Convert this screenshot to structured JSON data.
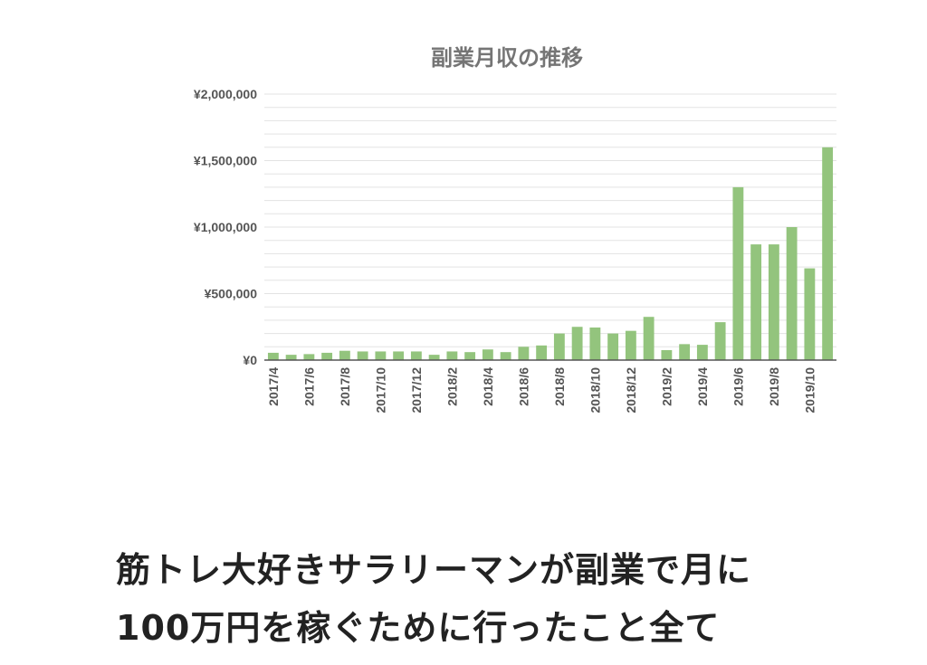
{
  "colors": {
    "bar": "#93c47d",
    "grid": "#e3e3e3",
    "axis": "#555555",
    "title": "#757575",
    "text": "#222222"
  },
  "chart_data": {
    "type": "bar",
    "title": "副業月収の推移",
    "xlabel": "",
    "ylabel": "",
    "ylim": [
      0,
      2000000
    ],
    "grid": true,
    "legend": "none",
    "yticks": [
      "¥0",
      "¥500,000",
      "¥1,000,000",
      "¥1,500,000",
      "¥2,000,000"
    ],
    "ytick_values": [
      0,
      500000,
      1000000,
      1500000,
      2000000
    ],
    "categories": [
      "2017/4",
      "2017/5",
      "2017/6",
      "2017/7",
      "2017/8",
      "2017/9",
      "2017/10",
      "2017/11",
      "2017/12",
      "2018/1",
      "2018/2",
      "2018/3",
      "2018/4",
      "2018/5",
      "2018/6",
      "2018/7",
      "2018/8",
      "2018/9",
      "2018/10",
      "2018/11",
      "2018/12",
      "2019/1",
      "2019/2",
      "2019/3",
      "2019/4",
      "2019/5",
      "2019/6",
      "2019/7",
      "2019/8",
      "2019/9",
      "2019/10",
      "2019/11"
    ],
    "xtick_labels": [
      "2017/4",
      "",
      "2017/6",
      "",
      "2017/8",
      "",
      "2017/10",
      "",
      "2017/12",
      "",
      "2018/2",
      "",
      "2018/4",
      "",
      "2018/6",
      "",
      "2018/8",
      "",
      "2018/10",
      "",
      "2018/12",
      "",
      "2019/2",
      "",
      "2019/4",
      "",
      "2019/6",
      "",
      "2019/8",
      "",
      "2019/10",
      ""
    ],
    "values": [
      55000,
      40000,
      45000,
      55000,
      70000,
      65000,
      65000,
      65000,
      65000,
      40000,
      65000,
      60000,
      80000,
      60000,
      100000,
      110000,
      200000,
      250000,
      245000,
      200000,
      220000,
      325000,
      75000,
      120000,
      115000,
      285000,
      1300000,
      870000,
      870000,
      1000000,
      690000,
      1600000
    ]
  },
  "headline": {
    "line1": "筋トレ大好きサラリーマンが副業で月に",
    "line2": "100万円を稼ぐために行ったこと全て"
  }
}
